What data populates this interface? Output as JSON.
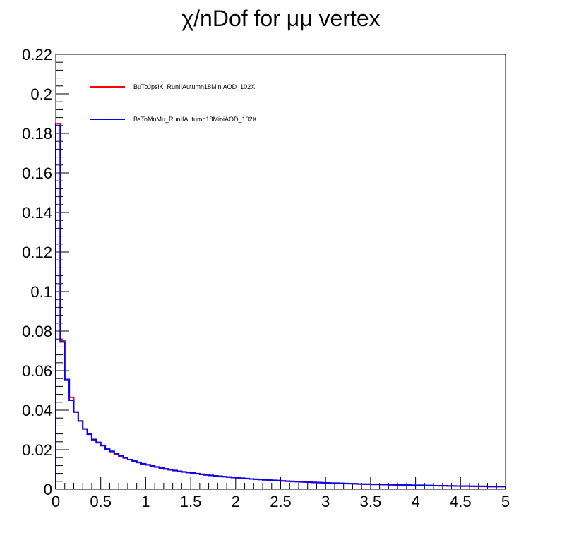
{
  "chart_data": {
    "type": "line",
    "title": "χ/nDof for μμ vertex",
    "xlabel": "",
    "ylabel": "",
    "xlim": [
      0,
      5
    ],
    "ylim": [
      0,
      0.22
    ],
    "x_ticks": [
      "0",
      "0.5",
      "1",
      "1.5",
      "2",
      "2.5",
      "3",
      "3.5",
      "4",
      "4.5",
      "5"
    ],
    "y_ticks": [
      "0",
      "0.02",
      "0.04",
      "0.06",
      "0.08",
      "0.1",
      "0.12",
      "0.14",
      "0.16",
      "0.18",
      "0.2",
      "0.22"
    ],
    "bin_width": 0.05,
    "legend_position": "top-left",
    "grid": false,
    "series": [
      {
        "name": "BuToJpsiK_RunIIAutumn18MiniAOD_102X",
        "color": "#ff0000",
        "values": [
          0.185,
          0.075,
          0.0555,
          0.0465,
          0.039,
          0.0345,
          0.0305,
          0.028,
          0.025,
          0.0235,
          0.022,
          0.02,
          0.019,
          0.0178,
          0.0168,
          0.0158,
          0.015,
          0.0142,
          0.0135,
          0.0128,
          0.0123,
          0.0117,
          0.0112,
          0.0107,
          0.0102,
          0.0098,
          0.0094,
          0.009,
          0.0087,
          0.0084,
          0.0081,
          0.0078,
          0.0075,
          0.0072,
          0.007,
          0.0067,
          0.0065,
          0.0063,
          0.0061,
          0.0059,
          0.0057,
          0.0055,
          0.0053,
          0.0052,
          0.005,
          0.0049,
          0.0047,
          0.0046,
          0.0044,
          0.0043,
          0.0042,
          0.004,
          0.0039,
          0.0038,
          0.0037,
          0.0036,
          0.0035,
          0.0034,
          0.0033,
          0.0032,
          0.0031,
          0.0031,
          0.003,
          0.0029,
          0.0028,
          0.0028,
          0.0027,
          0.0026,
          0.0026,
          0.0025,
          0.0024,
          0.0024,
          0.0023,
          0.0023,
          0.0022,
          0.0022,
          0.0021,
          0.0021,
          0.002,
          0.002,
          0.0019,
          0.0019,
          0.0018,
          0.0018,
          0.0018,
          0.0017,
          0.0017,
          0.0016,
          0.0016,
          0.0016,
          0.0015,
          0.0015,
          0.0015,
          0.0014,
          0.0014,
          0.0014,
          0.0013,
          0.0013,
          0.0013,
          0.0013
        ]
      },
      {
        "name": "BsToMuMu_RunIIAutumn18MiniAOD_102X",
        "color": "#0000ff",
        "values": [
          0.184,
          0.0745,
          0.0555,
          0.045,
          0.039,
          0.0345,
          0.0305,
          0.0278,
          0.0252,
          0.0237,
          0.0222,
          0.0203,
          0.0192,
          0.0181,
          0.0169,
          0.016,
          0.015,
          0.0143,
          0.0136,
          0.0129,
          0.0124,
          0.0118,
          0.0113,
          0.0108,
          0.0103,
          0.0099,
          0.0095,
          0.0091,
          0.0088,
          0.0085,
          0.0082,
          0.0079,
          0.0076,
          0.0073,
          0.007,
          0.0068,
          0.0066,
          0.0064,
          0.0062,
          0.006,
          0.0058,
          0.0056,
          0.0054,
          0.0052,
          0.0051,
          0.0049,
          0.0048,
          0.0046,
          0.0045,
          0.0044,
          0.0042,
          0.0041,
          0.004,
          0.0039,
          0.0038,
          0.0037,
          0.0036,
          0.0035,
          0.0034,
          0.0033,
          0.0032,
          0.0031,
          0.0031,
          0.003,
          0.0029,
          0.0028,
          0.0028,
          0.0027,
          0.0026,
          0.0026,
          0.0025,
          0.0025,
          0.0024,
          0.0023,
          0.0023,
          0.0022,
          0.0022,
          0.0021,
          0.0021,
          0.002,
          0.002,
          0.002,
          0.0019,
          0.0019,
          0.0018,
          0.0018,
          0.0018,
          0.0017,
          0.0017,
          0.0016,
          0.0016,
          0.0016,
          0.0015,
          0.0015,
          0.0015,
          0.0015,
          0.0014,
          0.0014,
          0.0014,
          0.0014
        ]
      }
    ]
  }
}
